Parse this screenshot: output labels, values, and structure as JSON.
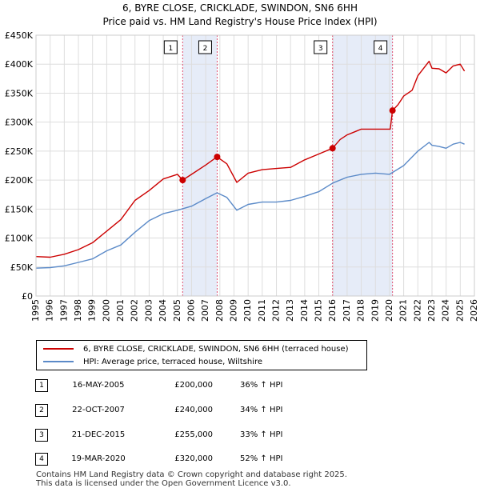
{
  "title_line1": "6, BYRE CLOSE, CRICKLADE, SWINDON, SN6 6HH",
  "title_line2": "Price paid vs. HM Land Registry's House Price Index (HPI)",
  "chart_data": {
    "type": "line",
    "xlim": [
      1995,
      2026
    ],
    "ylim": [
      0,
      450000
    ],
    "x_ticks": [
      1995,
      1996,
      1997,
      1998,
      1999,
      2000,
      2001,
      2002,
      2003,
      2004,
      2005,
      2006,
      2007,
      2008,
      2009,
      2010,
      2011,
      2012,
      2013,
      2014,
      2015,
      2016,
      2017,
      2018,
      2019,
      2020,
      2021,
      2022,
      2023,
      2024,
      2025,
      2026
    ],
    "y_ticks": [
      0,
      50000,
      100000,
      150000,
      200000,
      250000,
      300000,
      350000,
      400000,
      450000
    ],
    "y_tick_labels": [
      "£0",
      "£50K",
      "£100K",
      "£150K",
      "£200K",
      "£250K",
      "£300K",
      "£350K",
      "£400K",
      "£450K"
    ],
    "grid": true,
    "colors": {
      "property": "#cc0000",
      "hpi": "#5b8ac8",
      "shade": "#e6ecf8",
      "marker_line": "#e05070"
    },
    "series": [
      {
        "name": "6, BYRE CLOSE, CRICKLADE, SWINDON, SN6 6HH (terraced house)",
        "color": "#cc0000",
        "points": [
          [
            1995,
            68000
          ],
          [
            1996,
            67000
          ],
          [
            1997,
            72000
          ],
          [
            1998,
            80000
          ],
          [
            1999,
            92000
          ],
          [
            2000,
            112000
          ],
          [
            2001,
            132000
          ],
          [
            2002,
            165000
          ],
          [
            2003,
            182000
          ],
          [
            2004,
            202000
          ],
          [
            2005,
            210000
          ],
          [
            2005.37,
            200000
          ],
          [
            2006,
            210000
          ],
          [
            2007,
            226000
          ],
          [
            2007.8,
            240000
          ],
          [
            2008.5,
            228000
          ],
          [
            2009.2,
            196000
          ],
          [
            2010,
            212000
          ],
          [
            2011,
            218000
          ],
          [
            2012,
            220000
          ],
          [
            2013,
            222000
          ],
          [
            2014,
            235000
          ],
          [
            2015,
            245000
          ],
          [
            2015.97,
            255000
          ],
          [
            2016.5,
            270000
          ],
          [
            2017,
            278000
          ],
          [
            2017.6,
            284000
          ],
          [
            2018,
            288000
          ],
          [
            2019,
            288000
          ],
          [
            2020.05,
            288000
          ],
          [
            2020.21,
            320000
          ],
          [
            2020.6,
            330000
          ],
          [
            2021,
            345000
          ],
          [
            2021.6,
            355000
          ],
          [
            2022,
            380000
          ],
          [
            2022.8,
            405000
          ],
          [
            2023,
            393000
          ],
          [
            2023.5,
            392000
          ],
          [
            2024,
            385000
          ],
          [
            2024.5,
            397000
          ],
          [
            2025,
            400000
          ],
          [
            2025.3,
            388000
          ]
        ]
      },
      {
        "name": "HPI: Average price, terraced house, Wiltshire",
        "color": "#5b8ac8",
        "points": [
          [
            1995,
            48000
          ],
          [
            1996,
            49000
          ],
          [
            1997,
            52000
          ],
          [
            1998,
            58000
          ],
          [
            1999,
            64000
          ],
          [
            2000,
            78000
          ],
          [
            2001,
            88000
          ],
          [
            2002,
            110000
          ],
          [
            2003,
            130000
          ],
          [
            2004,
            142000
          ],
          [
            2005,
            148000
          ],
          [
            2006,
            155000
          ],
          [
            2007,
            168000
          ],
          [
            2007.8,
            178000
          ],
          [
            2008.5,
            170000
          ],
          [
            2009.2,
            148000
          ],
          [
            2010,
            158000
          ],
          [
            2011,
            162000
          ],
          [
            2012,
            162000
          ],
          [
            2013,
            165000
          ],
          [
            2014,
            172000
          ],
          [
            2015,
            180000
          ],
          [
            2016,
            195000
          ],
          [
            2017,
            205000
          ],
          [
            2018,
            210000
          ],
          [
            2019,
            212000
          ],
          [
            2020,
            210000
          ],
          [
            2021,
            225000
          ],
          [
            2022,
            250000
          ],
          [
            2022.8,
            265000
          ],
          [
            2023,
            260000
          ],
          [
            2023.5,
            258000
          ],
          [
            2024,
            255000
          ],
          [
            2024.5,
            262000
          ],
          [
            2025,
            265000
          ],
          [
            2025.3,
            262000
          ]
        ]
      }
    ],
    "sales": [
      {
        "id": "1",
        "x": 2005.37,
        "date": "16-MAY-2005",
        "price": 200000,
        "price_label": "£200,000",
        "hpi": "36% ↑ HPI"
      },
      {
        "id": "2",
        "x": 2007.81,
        "date": "22-OCT-2007",
        "price": 240000,
        "price_label": "£240,000",
        "hpi": "34% ↑ HPI"
      },
      {
        "id": "3",
        "x": 2015.97,
        "date": "21-DEC-2015",
        "price": 255000,
        "price_label": "£255,000",
        "hpi": "33% ↑ HPI"
      },
      {
        "id": "4",
        "x": 2020.21,
        "date": "19-MAR-2020",
        "price": 320000,
        "price_label": "£320,000",
        "hpi": "52% ↑ HPI"
      }
    ],
    "shaded_ranges": [
      [
        2005.37,
        2007.81
      ],
      [
        2015.97,
        2020.21
      ]
    ]
  },
  "legend": {
    "property": "6, BYRE CLOSE, CRICKLADE, SWINDON, SN6 6HH (terraced house)",
    "hpi": "HPI: Average price, terraced house, Wiltshire"
  },
  "footer": {
    "line1": "Contains HM Land Registry data © Crown copyright and database right 2025.",
    "line2": "This data is licensed under the Open Government Licence v3.0."
  }
}
